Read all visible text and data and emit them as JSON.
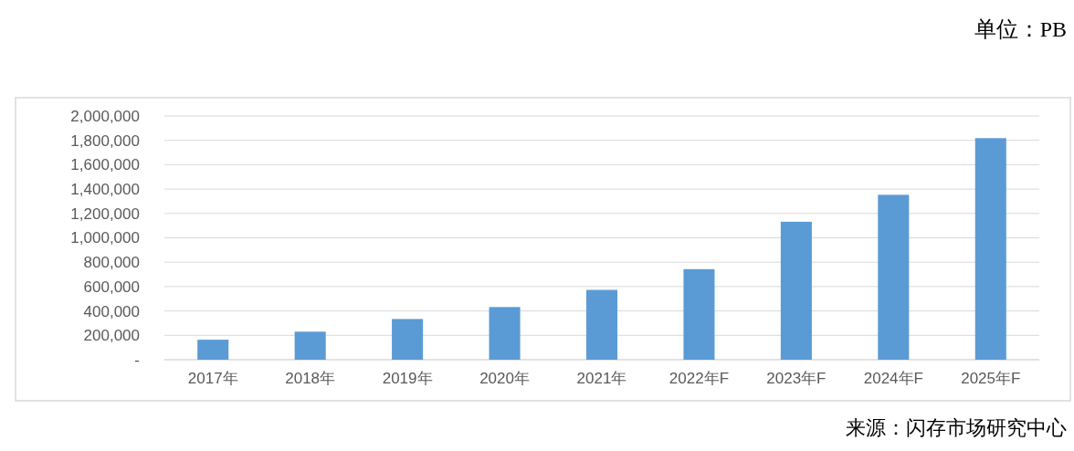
{
  "chart_data": {
    "type": "bar",
    "categories": [
      "2017年",
      "2018年",
      "2019年",
      "2020年",
      "2021年",
      "2022年F",
      "2023年F",
      "2024年F",
      "2025年F"
    ],
    "values": [
      164000,
      230000,
      334000,
      432000,
      573000,
      743000,
      1132000,
      1353000,
      1818000
    ],
    "color": "#5b9bd5",
    "ylim": [
      0,
      2000000
    ],
    "yticks": [
      {
        "value": 0,
        "label": "-"
      },
      {
        "value": 200000,
        "label": "200,000"
      },
      {
        "value": 400000,
        "label": "400,000"
      },
      {
        "value": 600000,
        "label": "600,000"
      },
      {
        "value": 800000,
        "label": "800,000"
      },
      {
        "value": 1000000,
        "label": "1,000,000"
      },
      {
        "value": 1200000,
        "label": "1,200,000"
      },
      {
        "value": 1400000,
        "label": "1,400,000"
      },
      {
        "value": 1600000,
        "label": "1,600,000"
      },
      {
        "value": 1800000,
        "label": "1,800,000"
      },
      {
        "value": 2000000,
        "label": "2,000,000"
      }
    ],
    "grid": "y",
    "annotations": [
      "单位：PB",
      "来源：闪存市场研究中心"
    ]
  }
}
